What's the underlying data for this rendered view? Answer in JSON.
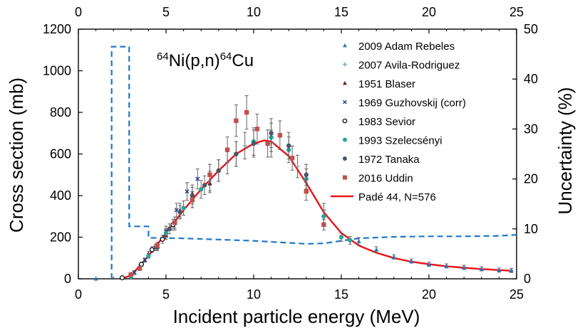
{
  "chart_data": {
    "type": "scatter",
    "title_parts": [
      "64",
      "Ni(p,n)",
      "64",
      "Cu"
    ],
    "xlabel": "Incident particle energy (MeV)",
    "ylabel": "Cross section (mb)",
    "y2label": "Uncertainty (%)",
    "xlim": [
      0,
      25
    ],
    "ylim": [
      0,
      1200
    ],
    "y2lim": [
      0,
      50
    ],
    "x_ticks": [
      "0",
      "5",
      "10",
      "15",
      "20",
      "25"
    ],
    "y_ticks": [
      "0",
      "200",
      "400",
      "600",
      "800",
      "1000",
      "1200"
    ],
    "y2_ticks": [
      "0",
      "10",
      "20",
      "30",
      "40",
      "50"
    ],
    "legend_position": "top-right",
    "grid": false,
    "series": [
      {
        "name": "2009 Adam Rebeles",
        "marker": "triangle",
        "color": "#2e75b6",
        "points": [
          [
            1.0,
            0
          ],
          [
            16.0,
            180
          ],
          [
            17.0,
            140
          ],
          [
            18.0,
            105
          ],
          [
            19.0,
            85
          ],
          [
            20.0,
            70
          ],
          [
            21.0,
            62
          ],
          [
            22.0,
            55
          ],
          [
            23.0,
            48
          ],
          [
            24.0,
            42
          ],
          [
            24.7,
            40
          ]
        ]
      },
      {
        "name": "2007 Avila-Rodriguez",
        "marker": "plus",
        "color": "#7aa6c2",
        "points": [
          [
            3.5,
            60
          ],
          [
            4.5,
            150
          ],
          [
            5.5,
            260
          ],
          [
            6.5,
            380
          ],
          [
            7.5,
            470
          ],
          [
            8.5,
            560
          ],
          [
            9.5,
            640
          ],
          [
            11.0,
            650
          ],
          [
            12.5,
            540
          ],
          [
            14.0,
            330
          ]
        ]
      },
      {
        "name": "1951 Blaser",
        "marker": "triangle",
        "color": "#7b1e1e",
        "points": [
          [
            4.0,
            120
          ],
          [
            5.0,
            210
          ],
          [
            5.8,
            330
          ],
          [
            6.5,
            410
          ],
          [
            7.5,
            460
          ]
        ]
      },
      {
        "name": "1969 Guzhovskij (corr)",
        "marker": "x",
        "color": "#1f3a93",
        "points": [
          [
            3.2,
            30
          ],
          [
            3.8,
            90
          ],
          [
            4.4,
            150
          ],
          [
            5.0,
            230
          ],
          [
            5.6,
            330
          ],
          [
            6.2,
            420
          ],
          [
            6.8,
            480
          ]
        ]
      },
      {
        "name": "1983 Sevior",
        "marker": "circle-open",
        "color": "#000000",
        "points": [
          [
            2.5,
            5
          ],
          [
            3.0,
            20
          ],
          [
            3.6,
            70
          ],
          [
            4.2,
            140
          ],
          [
            4.8,
            190
          ],
          [
            5.4,
            260
          ]
        ]
      },
      {
        "name": "1993 Szelecsényi",
        "marker": "circle",
        "color": "#26a69a",
        "points": [
          [
            3.0,
            10
          ],
          [
            4.0,
            110
          ],
          [
            5.0,
            220
          ],
          [
            6.0,
            340
          ],
          [
            7.0,
            430
          ],
          [
            8.0,
            520
          ],
          [
            9.0,
            600
          ],
          [
            10.0,
            660
          ],
          [
            11.0,
            680
          ],
          [
            12.0,
            620
          ],
          [
            13.0,
            480
          ],
          [
            14.0,
            300
          ],
          [
            15.0,
            200
          ],
          [
            15.5,
            185
          ]
        ]
      },
      {
        "name": "1972 Tanaka",
        "marker": "circle",
        "color": "#4a5568",
        "points": [
          [
            4.5,
            150
          ],
          [
            5.2,
            240
          ],
          [
            5.8,
            320
          ],
          [
            6.5,
            400
          ],
          [
            7.2,
            450
          ],
          [
            8.0,
            520
          ],
          [
            9.0,
            600
          ],
          [
            10.0,
            650
          ],
          [
            11.0,
            700
          ],
          [
            12.0,
            640
          ],
          [
            13.0,
            500
          ]
        ]
      },
      {
        "name": "2016 Uddin",
        "marker": "square",
        "color": "#c0504d",
        "points": [
          [
            3.0,
            20
          ],
          [
            3.5,
            50
          ],
          [
            4.5,
            160
          ],
          [
            5.5,
            270
          ],
          [
            6.5,
            380
          ],
          [
            7.5,
            500
          ],
          [
            8.5,
            620
          ],
          [
            9.0,
            760
          ],
          [
            9.6,
            800
          ],
          [
            10.2,
            720
          ],
          [
            10.8,
            650
          ],
          [
            11.5,
            690
          ],
          [
            12.2,
            580
          ],
          [
            13.0,
            420
          ],
          [
            14.0,
            260
          ]
        ]
      },
      {
        "name": "Padé 44, N=576",
        "type": "line",
        "color": "#e8141a",
        "points": [
          [
            2.4,
            0
          ],
          [
            3.0,
            15
          ],
          [
            4.0,
            110
          ],
          [
            5.0,
            220
          ],
          [
            6.0,
            330
          ],
          [
            7.0,
            430
          ],
          [
            8.0,
            520
          ],
          [
            9.0,
            600
          ],
          [
            10.0,
            650
          ],
          [
            10.6,
            665
          ],
          [
            11.0,
            660
          ],
          [
            12.0,
            590
          ],
          [
            13.0,
            460
          ],
          [
            14.0,
            320
          ],
          [
            15.0,
            220
          ],
          [
            16.0,
            160
          ],
          [
            17.0,
            125
          ],
          [
            18.0,
            100
          ],
          [
            19.0,
            82
          ],
          [
            20.0,
            70
          ],
          [
            21.0,
            60
          ],
          [
            22.0,
            53
          ],
          [
            23.0,
            47
          ],
          [
            24.0,
            42
          ],
          [
            24.8,
            38
          ]
        ]
      },
      {
        "name": "Uncertainty (%)",
        "type": "line",
        "dashed": true,
        "axis": "right",
        "color": "#1f78c8",
        "points": [
          [
            1.9,
            0
          ],
          [
            1.9,
            46.5
          ],
          [
            2.9,
            46.5
          ],
          [
            2.9,
            10.5
          ],
          [
            4.0,
            10.5
          ],
          [
            4.0,
            8.2
          ],
          [
            6.0,
            8.1
          ],
          [
            10.0,
            7.6
          ],
          [
            13.0,
            7.0
          ],
          [
            14.0,
            7.1
          ],
          [
            15.0,
            7.6
          ],
          [
            16.0,
            8.1
          ],
          [
            18.0,
            8.4
          ],
          [
            20.0,
            8.5
          ],
          [
            22.0,
            8.5
          ],
          [
            24.0,
            8.6
          ],
          [
            25.0,
            8.8
          ]
        ]
      }
    ]
  }
}
